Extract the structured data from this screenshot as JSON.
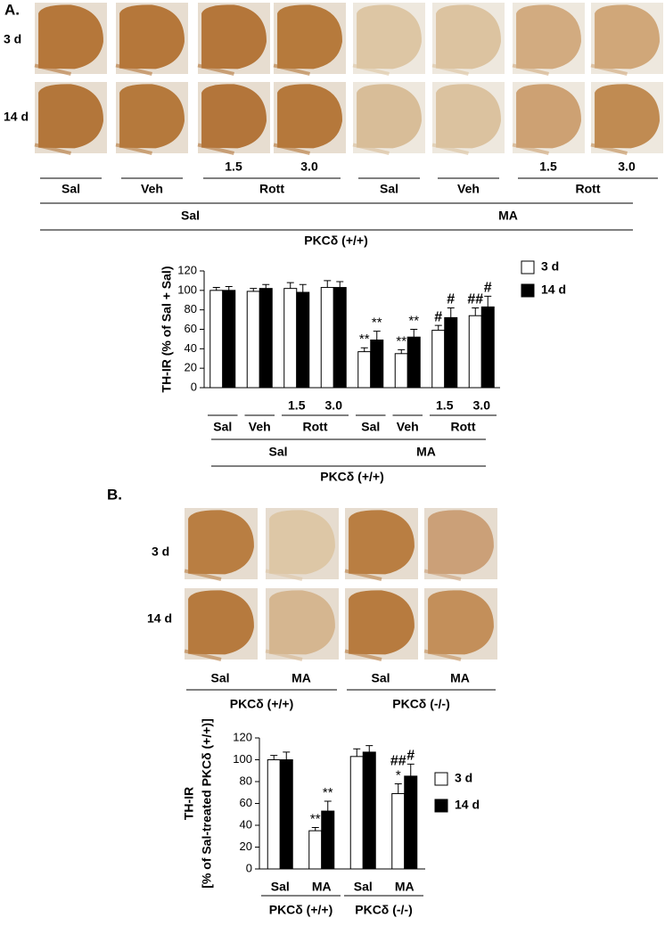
{
  "figure": {
    "panel_a": {
      "label": "A.",
      "row_labels": [
        "3 d",
        "14 d"
      ],
      "doses": [
        null,
        null,
        "1.5",
        "3.0",
        null,
        null,
        "1.5",
        "3.0"
      ],
      "treatments": [
        "Sal",
        "Veh",
        "Rott",
        "Sal",
        "Veh",
        "Rott"
      ],
      "pretreatments": [
        "Sal",
        "MA"
      ],
      "genotype": "PKCδ (+/+)"
    },
    "panel_b": {
      "label": "B.",
      "row_labels": [
        "3 d",
        "14 d"
      ],
      "treatments": [
        "Sal",
        "MA",
        "Sal",
        "MA"
      ],
      "genotypes": [
        "PKCδ (+/+)",
        "PKCδ (-/-)"
      ]
    }
  },
  "chart_data": [
    {
      "type": "bar",
      "y_label": [
        "TH-IR (% of Sal + Sal)"
      ],
      "categories": [
        null,
        null,
        "1.5",
        "3.0",
        null,
        null,
        "1.5",
        "3.0"
      ],
      "treatments": [
        "Sal",
        "Veh",
        "Rott",
        "Sal",
        "Veh",
        "Rott"
      ],
      "pretreatments": [
        "Sal",
        "MA"
      ],
      "genotype": "PKCδ (+/+)",
      "series": [
        {
          "name": "3 d",
          "color": "#ffffff",
          "values": [
            100,
            99,
            102,
            103,
            37,
            35,
            59,
            74
          ],
          "errors": [
            3,
            3,
            6,
            7,
            4,
            4,
            5,
            8
          ],
          "annotations": [
            null,
            null,
            null,
            null,
            [
              "**"
            ],
            [
              "**"
            ],
            [
              "#"
            ],
            [
              "##"
            ]
          ]
        },
        {
          "name": "14 d",
          "color": "#000000",
          "values": [
            100,
            102,
            98,
            103,
            49,
            52,
            72,
            83
          ],
          "errors": [
            4,
            4,
            8,
            6,
            9,
            8,
            10,
            11
          ],
          "annotations": [
            null,
            null,
            null,
            null,
            [
              "**"
            ],
            [
              "**"
            ],
            [
              "#"
            ],
            [
              "#"
            ]
          ]
        }
      ],
      "ylim": [
        0,
        120
      ],
      "yticks": [
        0,
        20,
        40,
        60,
        80,
        100,
        120
      ],
      "grid": false
    },
    {
      "type": "bar",
      "y_label": [
        "TH-IR",
        "[% of Sal-treated PKCδ (+/+)]"
      ],
      "categories": [
        "Sal",
        "MA",
        "Sal",
        "MA"
      ],
      "genotypes": [
        "PKCδ (+/+)",
        "PKCδ (-/-)"
      ],
      "series": [
        {
          "name": "3 d",
          "color": "#ffffff",
          "values": [
            100,
            35,
            103,
            69
          ],
          "errors": [
            4,
            3,
            7,
            9
          ],
          "annotations": [
            null,
            [
              "**"
            ],
            null,
            [
              "##",
              "*"
            ]
          ]
        },
        {
          "name": "14 d",
          "color": "#000000",
          "values": [
            100,
            53,
            107,
            85
          ],
          "errors": [
            7,
            9,
            6,
            11
          ],
          "annotations": [
            null,
            [
              "**"
            ],
            null,
            [
              "#"
            ]
          ]
        }
      ],
      "ylim": [
        0,
        120
      ],
      "yticks": [
        0,
        20,
        40,
        60,
        80,
        100,
        120
      ],
      "grid": false
    }
  ]
}
